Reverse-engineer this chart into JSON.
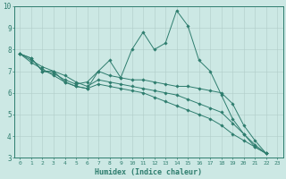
{
  "xlabel": "Humidex (Indice chaleur)",
  "background_color": "#cce8e4",
  "grid_color": "#b0ccc8",
  "line_color": "#2e7d6e",
  "xlim": [
    -0.5,
    23.5
  ],
  "ylim": [
    3,
    10
  ],
  "xticks": [
    0,
    1,
    2,
    3,
    4,
    5,
    6,
    7,
    8,
    9,
    10,
    11,
    12,
    13,
    14,
    15,
    16,
    17,
    18,
    19,
    20,
    21,
    22,
    23
  ],
  "yticks": [
    3,
    4,
    5,
    6,
    7,
    8,
    9,
    10
  ],
  "series": [
    [
      7.8,
      7.6,
      7.0,
      7.0,
      6.5,
      6.3,
      6.2,
      7.0,
      7.5,
      6.7,
      8.0,
      8.8,
      8.0,
      8.3,
      9.8,
      9.1,
      7.5,
      7.0,
      5.9,
      4.8,
      4.1,
      3.5,
      3.2
    ],
    [
      7.8,
      7.6,
      7.0,
      6.9,
      6.6,
      6.4,
      6.5,
      7.0,
      6.8,
      6.7,
      6.6,
      6.6,
      6.5,
      6.4,
      6.3,
      6.3,
      6.2,
      6.1,
      6.0,
      5.5,
      4.5,
      3.8,
      3.2
    ],
    [
      7.8,
      7.5,
      7.2,
      7.0,
      6.8,
      6.5,
      6.3,
      6.6,
      6.5,
      6.4,
      6.3,
      6.2,
      6.1,
      6.0,
      5.9,
      5.7,
      5.5,
      5.3,
      5.1,
      4.6,
      4.1,
      3.6,
      3.2
    ],
    [
      7.8,
      7.4,
      7.1,
      6.8,
      6.5,
      6.3,
      6.2,
      6.4,
      6.3,
      6.2,
      6.1,
      6.0,
      5.8,
      5.6,
      5.4,
      5.2,
      5.0,
      4.8,
      4.5,
      4.1,
      3.8,
      3.5,
      3.2
    ]
  ]
}
